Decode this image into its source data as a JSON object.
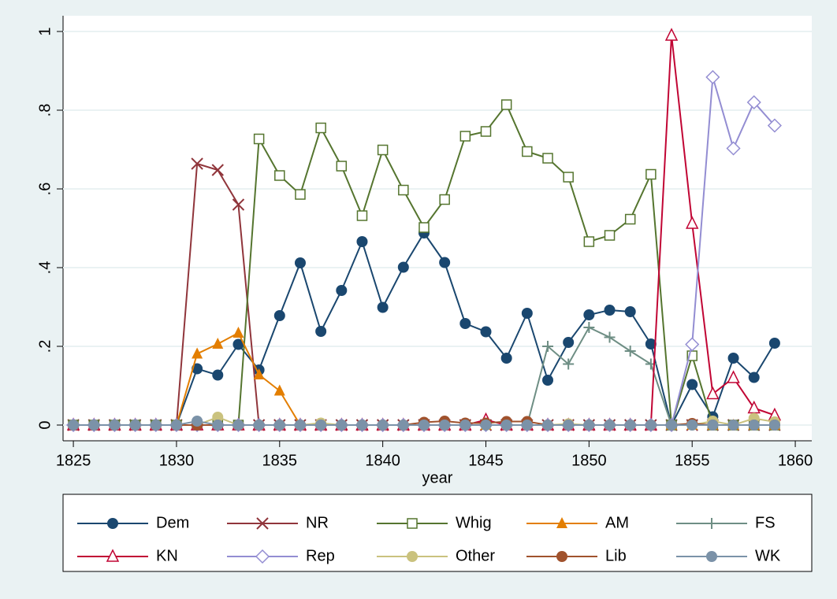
{
  "chart_data": {
    "type": "line",
    "xlabel": "year",
    "x": [
      1825,
      1826,
      1827,
      1828,
      1829,
      1830,
      1831,
      1832,
      1833,
      1834,
      1835,
      1836,
      1837,
      1838,
      1839,
      1840,
      1841,
      1842,
      1843,
      1844,
      1845,
      1846,
      1847,
      1848,
      1849,
      1850,
      1851,
      1852,
      1853,
      1854,
      1855,
      1856,
      1857,
      1858,
      1859
    ],
    "xlim": [
      1824.5,
      1860.8
    ],
    "xticks": [
      1825,
      1830,
      1835,
      1840,
      1845,
      1850,
      1855,
      1860
    ],
    "ylim": [
      -0.04,
      1.04
    ],
    "yticks": [
      0,
      {
        "value": 0.2,
        "label": ".2"
      },
      {
        "value": 0.4,
        "label": ".4"
      },
      {
        "value": 0.6,
        "label": ".6"
      },
      {
        "value": 0.8,
        "label": ".8"
      },
      1
    ],
    "grid": true,
    "legend": "bottom",
    "series": [
      {
        "name": "Dem",
        "color": "#1a476f",
        "marker": "circle",
        "values": [
          0,
          0,
          0,
          0,
          0,
          0,
          0.143,
          0.127,
          0.205,
          0.14,
          0.278,
          0.412,
          0.238,
          0.342,
          0.466,
          0.299,
          0.401,
          0.488,
          0.413,
          0.258,
          0.237,
          0.17,
          0.284,
          0.114,
          0.21,
          0.28,
          0.292,
          0.288,
          0.206,
          0,
          0.103,
          0.021,
          0.17,
          0.121,
          0.208
        ]
      },
      {
        "name": "NR",
        "color": "#90353b",
        "marker": "x",
        "values": [
          0,
          0,
          0,
          0,
          0,
          0,
          0.664,
          0.648,
          0.56,
          0,
          0,
          0,
          0,
          0,
          0,
          0,
          0,
          0,
          0,
          0,
          0,
          0,
          0,
          0,
          0,
          0,
          0,
          0,
          0,
          0,
          0,
          0,
          0,
          0,
          0
        ]
      },
      {
        "name": "Whig",
        "color": "#55752f",
        "marker": "square",
        "values": [
          0,
          0,
          0,
          0,
          0,
          0,
          0,
          0,
          0,
          0.727,
          0.634,
          0.586,
          0.755,
          0.658,
          0.532,
          0.699,
          0.597,
          0.502,
          0.573,
          0.734,
          0.746,
          0.814,
          0.695,
          0.678,
          0.63,
          0.466,
          0.482,
          0.523,
          0.637,
          0,
          0.176,
          0,
          0,
          0,
          0
        ]
      },
      {
        "name": "AM",
        "color": "#e37e00",
        "marker": "triangle",
        "values": [
          0,
          0,
          0,
          0,
          0,
          0,
          0.181,
          0.206,
          0.234,
          0.128,
          0.087,
          0,
          0,
          0,
          0,
          0,
          0,
          0,
          0,
          0,
          0,
          0,
          0,
          0,
          0,
          0,
          0,
          0,
          0,
          0,
          0,
          0,
          0,
          0,
          0
        ]
      },
      {
        "name": "FS",
        "color": "#6e8e84",
        "marker": "plus",
        "values": [
          0,
          0,
          0,
          0,
          0,
          0,
          0,
          0,
          0,
          0,
          0,
          0,
          0,
          0,
          0,
          0,
          0,
          0,
          0,
          0,
          0,
          0,
          0,
          0.2,
          0.155,
          0.248,
          0.223,
          0.188,
          0.155,
          0,
          0,
          0,
          0,
          0,
          0
        ]
      },
      {
        "name": "KN",
        "color": "#c10534",
        "marker": "triangle-hollow",
        "values": [
          0,
          0,
          0,
          0,
          0,
          0,
          0,
          0,
          0,
          0,
          0,
          0,
          0,
          0,
          0,
          0,
          0,
          0,
          0,
          0,
          0.013,
          0,
          0,
          0,
          0,
          0,
          0,
          0,
          0,
          0.99,
          0.512,
          0.079,
          0.12,
          0.043,
          0.025
        ]
      },
      {
        "name": "Rep",
        "color": "#938dd2",
        "marker": "diamond",
        "values": [
          0,
          0,
          0,
          0,
          0,
          0,
          0,
          0,
          0,
          0,
          0,
          0,
          0,
          0,
          0,
          0,
          0,
          0,
          0,
          0,
          0,
          0,
          0,
          0,
          0,
          0,
          0,
          0,
          0,
          0,
          0.205,
          0.884,
          0.703,
          0.82,
          0.761
        ]
      },
      {
        "name": "Other",
        "color": "#cac27e",
        "marker": "circle",
        "values": [
          0,
          0,
          0,
          0,
          0,
          0,
          0,
          0.02,
          0,
          0,
          0,
          0,
          0.005,
          0,
          0,
          0,
          0,
          0,
          0,
          0,
          0,
          0,
          0,
          0,
          0.003,
          0,
          0,
          0,
          0,
          0,
          0,
          0.01,
          0,
          0.017,
          0.008
        ]
      },
      {
        "name": "Lib",
        "color": "#a0522d",
        "marker": "circle",
        "values": [
          0,
          0,
          0,
          0,
          0,
          0,
          0,
          0,
          0,
          0,
          0,
          0,
          0,
          0,
          0,
          0,
          0,
          0.007,
          0.01,
          0.005,
          0.005,
          0.009,
          0.009,
          0,
          0,
          0,
          0,
          0,
          0,
          0,
          0.004,
          0,
          0,
          0,
          0
        ]
      },
      {
        "name": "WK",
        "color": "#7b92a8",
        "marker": "circle",
        "values": [
          0,
          0,
          0,
          0,
          0,
          0,
          0.01,
          0,
          0,
          0,
          0,
          0,
          0,
          0,
          0,
          0,
          0,
          0,
          0,
          0,
          0,
          0,
          0,
          0,
          0,
          0,
          0,
          0,
          0,
          0,
          0,
          0,
          0,
          0,
          0
        ]
      }
    ]
  }
}
